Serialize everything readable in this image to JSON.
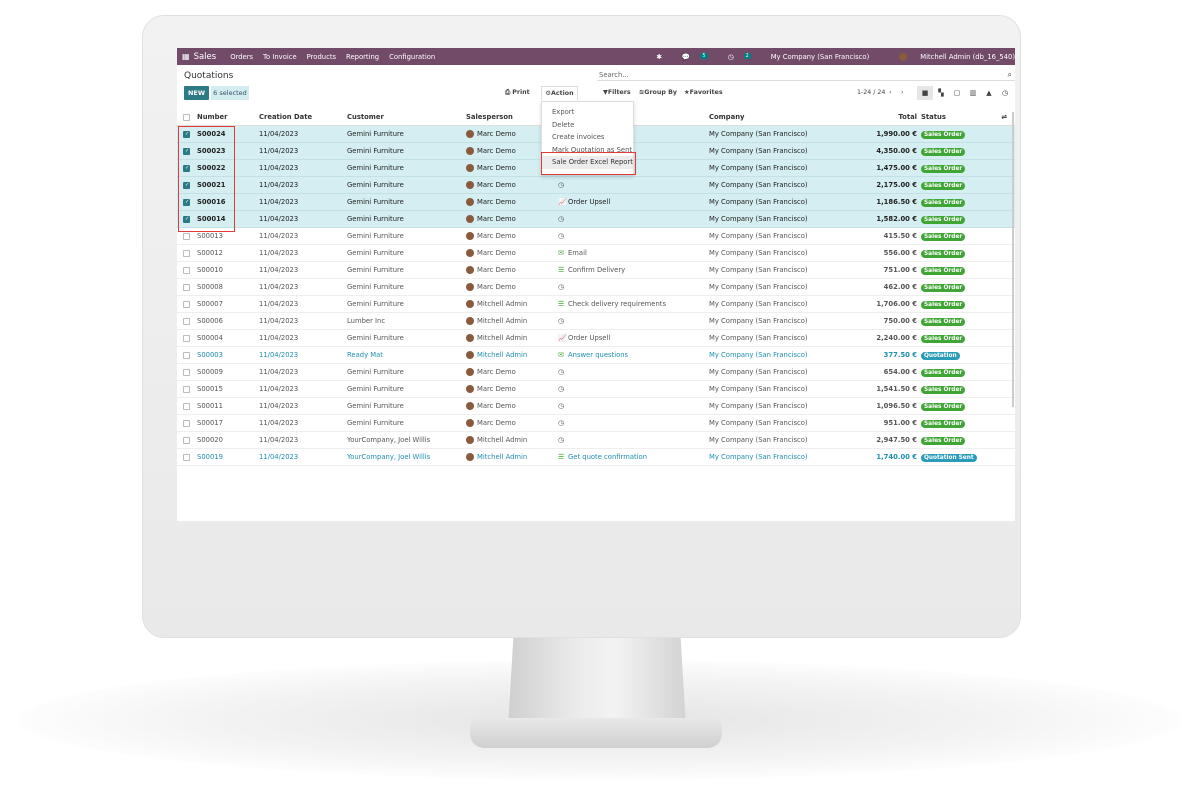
{
  "nav": {
    "app": "Sales",
    "menus": [
      "Orders",
      "To Invoice",
      "Products",
      "Reporting",
      "Configuration"
    ],
    "messages_count": "5",
    "activities_count": "2",
    "company": "My Company (San Francisco)",
    "user": "Mitchell Admin (db_16_540)"
  },
  "page": {
    "title": "Quotations",
    "search_placeholder": "Search...",
    "new_label": "NEW",
    "selected_label": "6 selected",
    "print_label": "Print",
    "action_label": "Action",
    "filters_label": "Filters",
    "groupby_label": "Group By",
    "favorites_label": "Favorites",
    "pager": "1-24 / 24"
  },
  "action_menu": [
    "Export",
    "Delete",
    "Create invoices",
    "Mark Quotation as Sent",
    "Sale Order Excel Report"
  ],
  "columns": {
    "number": "Number",
    "date": "Creation Date",
    "customer": "Customer",
    "salesperson": "Salesperson",
    "company": "Company",
    "total": "Total",
    "status": "Status"
  },
  "colors": {
    "navbar": "#714b67",
    "sales_order": "#3fa535",
    "quotation": "#2a9cb8",
    "highlight": "#e53935"
  },
  "rows": [
    {
      "number": "S00024",
      "date": "11/04/2023",
      "customer": "Gemini Furniture",
      "salesperson": "Marc Demo",
      "activity": "",
      "company": "My Company (San Francisco)",
      "total": "1,990.00 €",
      "status": "Sales Order",
      "selected": true
    },
    {
      "number": "S00023",
      "date": "11/04/2023",
      "customer": "Gemini Furniture",
      "salesperson": "Marc Demo",
      "activity": "",
      "company": "My Company (San Francisco)",
      "total": "4,350.00 €",
      "status": "Sales Order",
      "selected": true
    },
    {
      "number": "S00022",
      "date": "11/04/2023",
      "customer": "Gemini Furniture",
      "salesperson": "Marc Demo",
      "activity": "",
      "company": "My Company (San Francisco)",
      "total": "1,475.00 €",
      "status": "Sales Order",
      "selected": true
    },
    {
      "number": "S00021",
      "date": "11/04/2023",
      "customer": "Gemini Furniture",
      "salesperson": "Marc Demo",
      "activity": "",
      "icon": "clock",
      "company": "My Company (San Francisco)",
      "total": "2,175.00 €",
      "status": "Sales Order",
      "selected": true
    },
    {
      "number": "S00016",
      "date": "11/04/2023",
      "customer": "Gemini Furniture",
      "salesperson": "Marc Demo",
      "activity": "Order Upsell",
      "icon": "chart",
      "company": "My Company (San Francisco)",
      "total": "1,186.50 €",
      "status": "Sales Order",
      "selected": true
    },
    {
      "number": "S00014",
      "date": "11/04/2023",
      "customer": "Gemini Furniture",
      "salesperson": "Marc Demo",
      "activity": "",
      "icon": "clock",
      "company": "My Company (San Francisco)",
      "total": "1,582.00 €",
      "status": "Sales Order",
      "selected": true
    },
    {
      "number": "S00013",
      "date": "11/04/2023",
      "customer": "Gemini Furniture",
      "salesperson": "Marc Demo",
      "activity": "",
      "icon": "clock",
      "company": "My Company (San Francisco)",
      "total": "415.50 €",
      "status": "Sales Order"
    },
    {
      "number": "S00012",
      "date": "11/04/2023",
      "customer": "Gemini Furniture",
      "salesperson": "Marc Demo",
      "activity": "Email",
      "icon": "email",
      "company": "My Company (San Francisco)",
      "total": "556.00 €",
      "status": "Sales Order"
    },
    {
      "number": "S00010",
      "date": "11/04/2023",
      "customer": "Gemini Furniture",
      "salesperson": "Marc Demo",
      "activity": "Confirm Delivery",
      "icon": "todo",
      "company": "My Company (San Francisco)",
      "total": "751.00 €",
      "status": "Sales Order"
    },
    {
      "number": "S00008",
      "date": "11/04/2023",
      "customer": "Gemini Furniture",
      "salesperson": "Marc Demo",
      "activity": "",
      "icon": "clock",
      "company": "My Company (San Francisco)",
      "total": "462.00 €",
      "status": "Sales Order"
    },
    {
      "number": "S00007",
      "date": "11/04/2023",
      "customer": "Gemini Furniture",
      "salesperson": "Mitchell Admin",
      "activity": "Check delivery requirements",
      "icon": "todo",
      "company": "My Company (San Francisco)",
      "total": "1,706.00 €",
      "status": "Sales Order"
    },
    {
      "number": "S00006",
      "date": "11/04/2023",
      "customer": "Lumber Inc",
      "salesperson": "Mitchell Admin",
      "activity": "",
      "icon": "clock",
      "company": "My Company (San Francisco)",
      "total": "750.00 €",
      "status": "Sales Order"
    },
    {
      "number": "S00004",
      "date": "11/04/2023",
      "customer": "Gemini Furniture",
      "salesperson": "Mitchell Admin",
      "activity": "Order Upsell",
      "icon": "chart",
      "company": "My Company (San Francisco)",
      "total": "2,240.00 €",
      "status": "Sales Order"
    },
    {
      "number": "S00003",
      "date": "11/04/2023",
      "customer": "Ready Mat",
      "salesperson": "Mitchell Admin",
      "activity": "Answer questions",
      "icon": "email",
      "company": "My Company (San Francisco)",
      "total": "377.50 €",
      "status": "Quotation",
      "blue": true
    },
    {
      "number": "S00009",
      "date": "11/04/2023",
      "customer": "Gemini Furniture",
      "salesperson": "Marc Demo",
      "activity": "",
      "icon": "clock",
      "company": "My Company (San Francisco)",
      "total": "654.00 €",
      "status": "Sales Order"
    },
    {
      "number": "S00015",
      "date": "11/04/2023",
      "customer": "Gemini Furniture",
      "salesperson": "Marc Demo",
      "activity": "",
      "icon": "clock",
      "company": "My Company (San Francisco)",
      "total": "1,541.50 €",
      "status": "Sales Order"
    },
    {
      "number": "S00011",
      "date": "11/04/2023",
      "customer": "Gemini Furniture",
      "salesperson": "Marc Demo",
      "activity": "",
      "icon": "clock",
      "company": "My Company (San Francisco)",
      "total": "1,096.50 €",
      "status": "Sales Order"
    },
    {
      "number": "S00017",
      "date": "11/04/2023",
      "customer": "Gemini Furniture",
      "salesperson": "Marc Demo",
      "activity": "",
      "icon": "clock",
      "company": "My Company (San Francisco)",
      "total": "951.00 €",
      "status": "Sales Order"
    },
    {
      "number": "S00020",
      "date": "11/04/2023",
      "customer": "YourCompany, Joel Willis",
      "salesperson": "Mitchell Admin",
      "activity": "",
      "icon": "clock",
      "company": "My Company (San Francisco)",
      "total": "2,947.50 €",
      "status": "Sales Order"
    },
    {
      "number": "S00019",
      "date": "11/04/2023",
      "customer": "YourCompany, Joel Willis",
      "salesperson": "Mitchell Admin",
      "activity": "Get quote confirmation",
      "icon": "todo",
      "company": "My Company (San Francisco)",
      "total": "1,740.00 €",
      "status": "Quotation Sent",
      "blue": true
    }
  ]
}
